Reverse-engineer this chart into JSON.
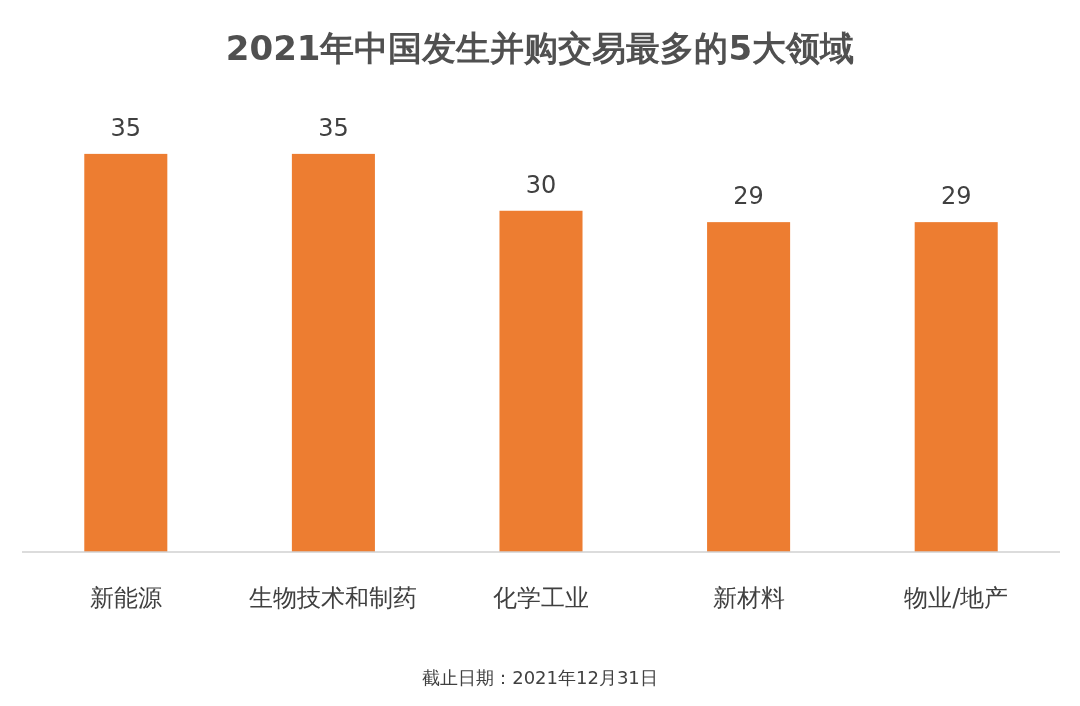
{
  "chart_data": {
    "type": "bar",
    "title": "2021年中国发生并购交易最多的5大领域",
    "categories": [
      "新能源",
      "生物技术和制药",
      "化学工业",
      "新材料",
      "物业/地产"
    ],
    "values": [
      35,
      35,
      30,
      29,
      29
    ],
    "color": "#ed7d31",
    "data_labels": true,
    "grid": false,
    "annotations": [
      "截止日期：2021年12月31日"
    ]
  }
}
